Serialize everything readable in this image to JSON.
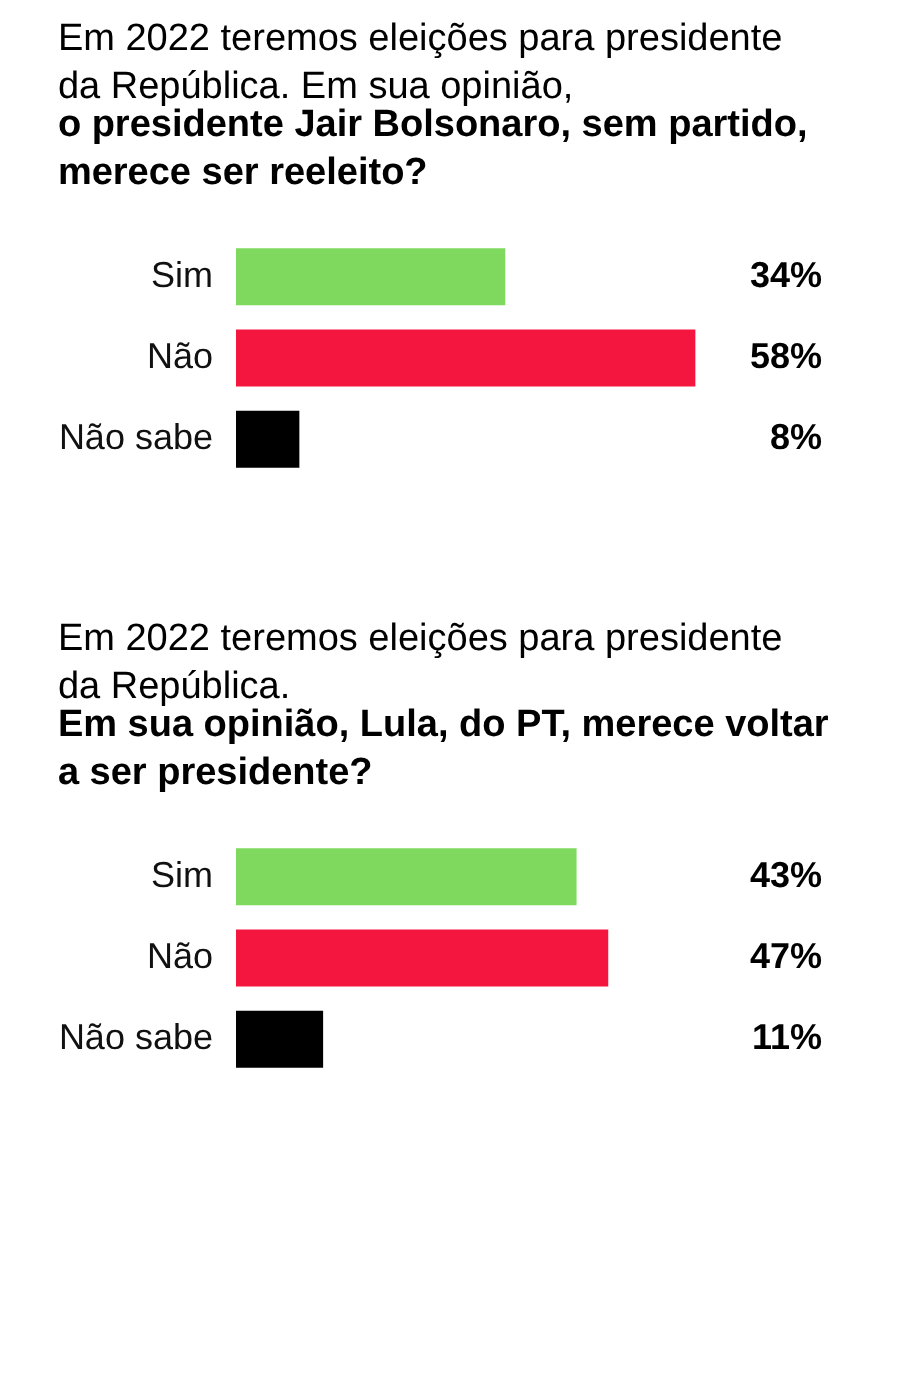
{
  "chart_data": [
    {
      "type": "bar",
      "orientation": "horizontal",
      "title": "Em 2022 teremos eleições para presidente da República. Em sua opinião,",
      "subtitle": "o presidente Jair Bolsonaro, sem partido, merece ser reeleito?",
      "categories": [
        "Sim",
        "Não",
        "Não sabe"
      ],
      "values": [
        34,
        58,
        8
      ],
      "colors": [
        "#7ed95e",
        "#f5163f",
        "#000000"
      ],
      "value_labels": [
        "34%",
        "58%",
        "8%"
      ],
      "tick_labels": "y"
    },
    {
      "type": "bar",
      "orientation": "horizontal",
      "title": "Em 2022 teremos eleições para presidente da República.",
      "subtitle": "Em sua opinião, Lula, do PT, merece voltar a ser presidente?",
      "categories": [
        "Sim",
        "Não",
        "Não sabe"
      ],
      "values": [
        43,
        47,
        11
      ],
      "colors": [
        "#7ed95e",
        "#f5163f",
        "#000000"
      ],
      "value_labels": [
        "43%",
        "47%",
        "11%"
      ],
      "tick_labels": "y"
    }
  ]
}
